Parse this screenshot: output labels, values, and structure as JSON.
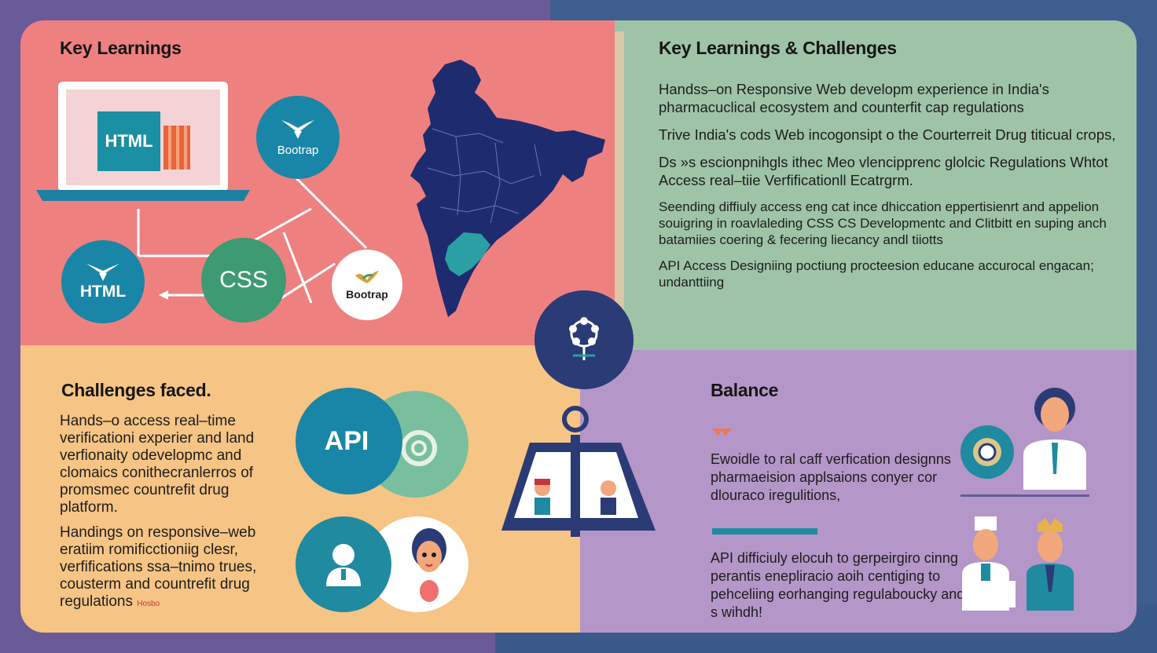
{
  "top_left": {
    "heading": "Key Learnings",
    "laptop_badge": "HTML",
    "bootstrap_top": "Bootrap",
    "html_circle": "HTML",
    "css_circle": "CSS",
    "bootstrap_bottom": "Bootrap"
  },
  "top_right": {
    "heading": "Key Learnings & Challenges",
    "paragraphs": [
      "Handss–on Responsive Web developm experience in India's pharmacuclical ecosystem and counterfit cap regulations",
      "Trive India's cods Web incogonsipt o the Courterreit Drug titicual crops,",
      "Ds »s escionpnihgls ithec Meo vlencipprenc glolcic Regulations Whtot Access real–tiie Verfificationll Ecatrgrm.",
      "Seending diffiuly access eng cat ince dhiccation eppertisienrt and appelion souigring in roavlaleding CSS CS Developmentc and Clitbitt en suping anch batamiies coering & fecering liecancy andl tiiotts",
      "API Access Designiing poctiung procteesion educane accurocal engacan; undanttiing"
    ]
  },
  "bottom_left": {
    "heading": "Challenges faced.",
    "paragraphs": [
      "Hands–o access real–time verificationi experier and land verfionaity odevelopmc and clomaics conithecranlerros of promsmec countrefit drug platform.",
      "Handings on responsive–web eratiim romificctioniig clesr, verfifications ssa–tnimo trues, cousterm and countrefit drug regulations"
    ],
    "scribble": "Hosbo",
    "api_label": "API"
  },
  "bottom_right": {
    "heading": "Balance",
    "paragraphs": [
      "Ewoidle to ral caff verfication designns pharmaeision applsaions conyer cor dlouraco iregulitions,",
      "API difficiuly elocuh to gerpeirgiro cinng perantis enepliracio aoih centiging to pehceliing eorhanging regulaboucky and s wihdh!"
    ]
  },
  "colors": {
    "coral": "#ef8080",
    "sage": "#9fc3a7",
    "peach": "#f6c485",
    "lavender": "#b496c8",
    "navy": "#1d2d6e",
    "teal": "#1f8aa8",
    "green": "#3d9a73"
  }
}
